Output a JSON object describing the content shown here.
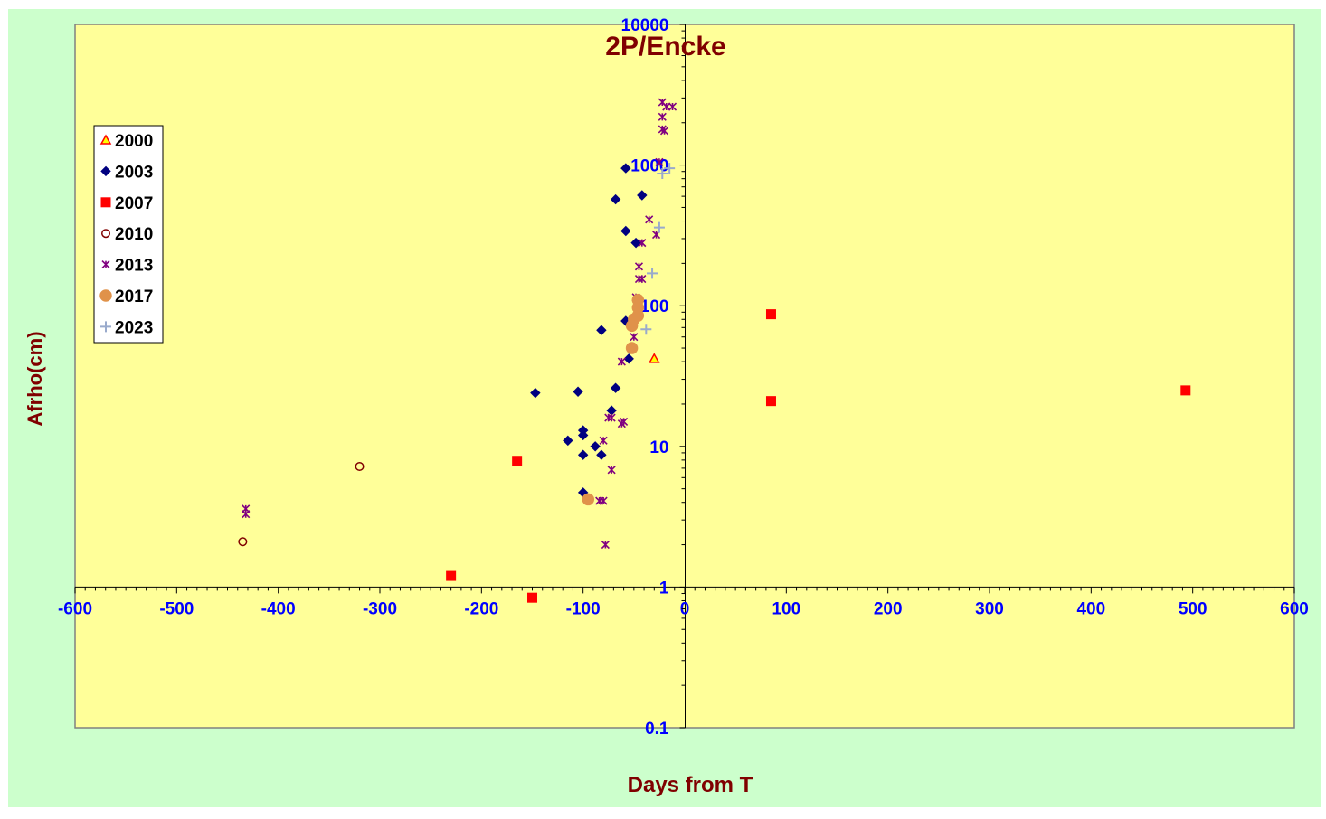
{
  "chart_data": {
    "type": "scatter",
    "title": "2P/Encke",
    "xlabel": "Days from T",
    "ylabel": "Afrho(cm)",
    "xlim": [
      -600,
      600
    ],
    "ylim": [
      0.1,
      10000
    ],
    "yscale": "log",
    "x_ticks": [
      -600,
      -500,
      -400,
      -300,
      -200,
      -100,
      0,
      100,
      200,
      300,
      400,
      500,
      600
    ],
    "x_tick_labels": [
      "-600",
      "-500",
      "-400",
      "-300",
      "-200",
      "-100",
      "0",
      "100",
      "200",
      "300",
      "400",
      "500",
      "600"
    ],
    "y_ticks": [
      0.1,
      1,
      10,
      100,
      1000,
      10000
    ],
    "y_tick_labels": [
      "0.1",
      "1",
      "10",
      "100",
      "1000",
      "10000"
    ],
    "grid": false,
    "legend_position": "left",
    "colors": {
      "outer_background": "#ccffcc",
      "plot_background": "#ffff99",
      "title": "#800000",
      "axis_label": "#800000",
      "tick_label": "#0000ff"
    },
    "series": [
      {
        "name": "2000",
        "marker": "triangle",
        "fill": "#ffff00",
        "stroke": "#ff0000",
        "points": [
          [
            -30,
            42
          ]
        ]
      },
      {
        "name": "2003",
        "marker": "diamond",
        "fill": "#000080",
        "stroke": "#000080",
        "points": [
          [
            -58,
            950
          ],
          [
            -68,
            570
          ],
          [
            -42,
            610
          ],
          [
            -58,
            340
          ],
          [
            -48,
            280
          ],
          [
            -58,
            78
          ],
          [
            -82,
            67
          ],
          [
            -55,
            42
          ],
          [
            -147,
            24
          ],
          [
            -105,
            24.5
          ],
          [
            -68,
            26
          ],
          [
            -72,
            18
          ],
          [
            -100,
            13
          ],
          [
            -100,
            12
          ],
          [
            -115,
            11
          ],
          [
            -88,
            10
          ],
          [
            -82,
            8.7
          ],
          [
            -100,
            8.7
          ],
          [
            -100,
            4.7
          ]
        ]
      },
      {
        "name": "2007",
        "marker": "square",
        "fill": "#ff0000",
        "stroke": "#ff0000",
        "points": [
          [
            -165,
            7.9
          ],
          [
            -230,
            1.2
          ],
          [
            -150,
            0.84
          ],
          [
            85,
            87
          ],
          [
            85,
            21
          ],
          [
            493,
            25
          ]
        ]
      },
      {
        "name": "2010",
        "marker": "circle-open",
        "fill": "none",
        "stroke": "#800000",
        "points": [
          [
            -320,
            7.2
          ],
          [
            -435,
            2.1
          ]
        ]
      },
      {
        "name": "2013",
        "marker": "star",
        "fill": "#800080",
        "stroke": "#800080",
        "points": [
          [
            -22,
            2800
          ],
          [
            -18,
            2600
          ],
          [
            -22,
            2200
          ],
          [
            -12,
            2600
          ],
          [
            -22,
            1800
          ],
          [
            -20,
            1750
          ],
          [
            -25,
            1050
          ],
          [
            -35,
            410
          ],
          [
            -28,
            320
          ],
          [
            -42,
            280
          ],
          [
            -45,
            190
          ],
          [
            -45,
            155
          ],
          [
            -42,
            155
          ],
          [
            -48,
            115
          ],
          [
            -50,
            60
          ],
          [
            -62,
            40
          ],
          [
            -75,
            16
          ],
          [
            -72,
            16
          ],
          [
            -60,
            15
          ],
          [
            -62,
            14.5
          ],
          [
            -80,
            11
          ],
          [
            -72,
            6.8
          ],
          [
            -84,
            4.1
          ],
          [
            -80,
            4.1
          ],
          [
            -78,
            2.0
          ],
          [
            -432,
            3.6
          ],
          [
            -432,
            3.3
          ]
        ]
      },
      {
        "name": "2017",
        "marker": "circle",
        "fill": "#e0924a",
        "stroke": "#e0924a",
        "points": [
          [
            -46,
            110
          ],
          [
            -46,
            97
          ],
          [
            -46,
            85
          ],
          [
            -50,
            80
          ],
          [
            -52,
            72
          ],
          [
            -52,
            50
          ],
          [
            -95,
            4.2
          ]
        ]
      },
      {
        "name": "2023",
        "marker": "plus",
        "fill": "none",
        "stroke": "#99aacc",
        "points": [
          [
            -15,
            950
          ],
          [
            -22,
            870
          ],
          [
            -25,
            360
          ],
          [
            -32,
            170
          ],
          [
            -38,
            68
          ]
        ]
      }
    ]
  }
}
